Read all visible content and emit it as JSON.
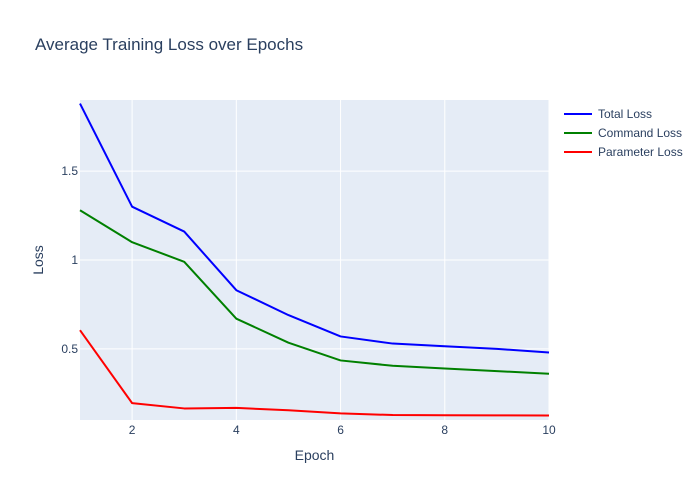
{
  "chart_data": {
    "type": "line",
    "title": "Average Training Loss over Epochs",
    "xlabel": "Epoch",
    "ylabel": "Loss",
    "xlim": [
      1,
      10
    ],
    "ylim": [
      0.1,
      1.9
    ],
    "x_ticks": [
      2,
      4,
      6,
      8,
      10
    ],
    "y_ticks": [
      0.5,
      1,
      1.5
    ],
    "x_tick_labels": [
      "2",
      "4",
      "6",
      "8",
      "10"
    ],
    "y_tick_labels": [
      "0.5",
      "1",
      "1.5"
    ],
    "grid": true,
    "legend_position": "top-right",
    "plot_background": "#e5ecf6",
    "grid_color": "#ffffff",
    "x": [
      1,
      2,
      3,
      4,
      5,
      6,
      7,
      8,
      9,
      10
    ],
    "series": [
      {
        "name": "Total Loss",
        "color": "#0000ff",
        "values": [
          1.88,
          1.3,
          1.16,
          0.83,
          0.69,
          0.57,
          0.53,
          0.515,
          0.5,
          0.48
        ]
      },
      {
        "name": "Command Loss",
        "color": "#008000",
        "values": [
          1.28,
          1.1,
          0.99,
          0.67,
          0.535,
          0.435,
          0.405,
          0.39,
          0.375,
          0.36
        ]
      },
      {
        "name": "Parameter Loss",
        "color": "#ff0000",
        "values": [
          0.605,
          0.195,
          0.165,
          0.168,
          0.155,
          0.137,
          0.128,
          0.127,
          0.126,
          0.125
        ]
      }
    ]
  }
}
